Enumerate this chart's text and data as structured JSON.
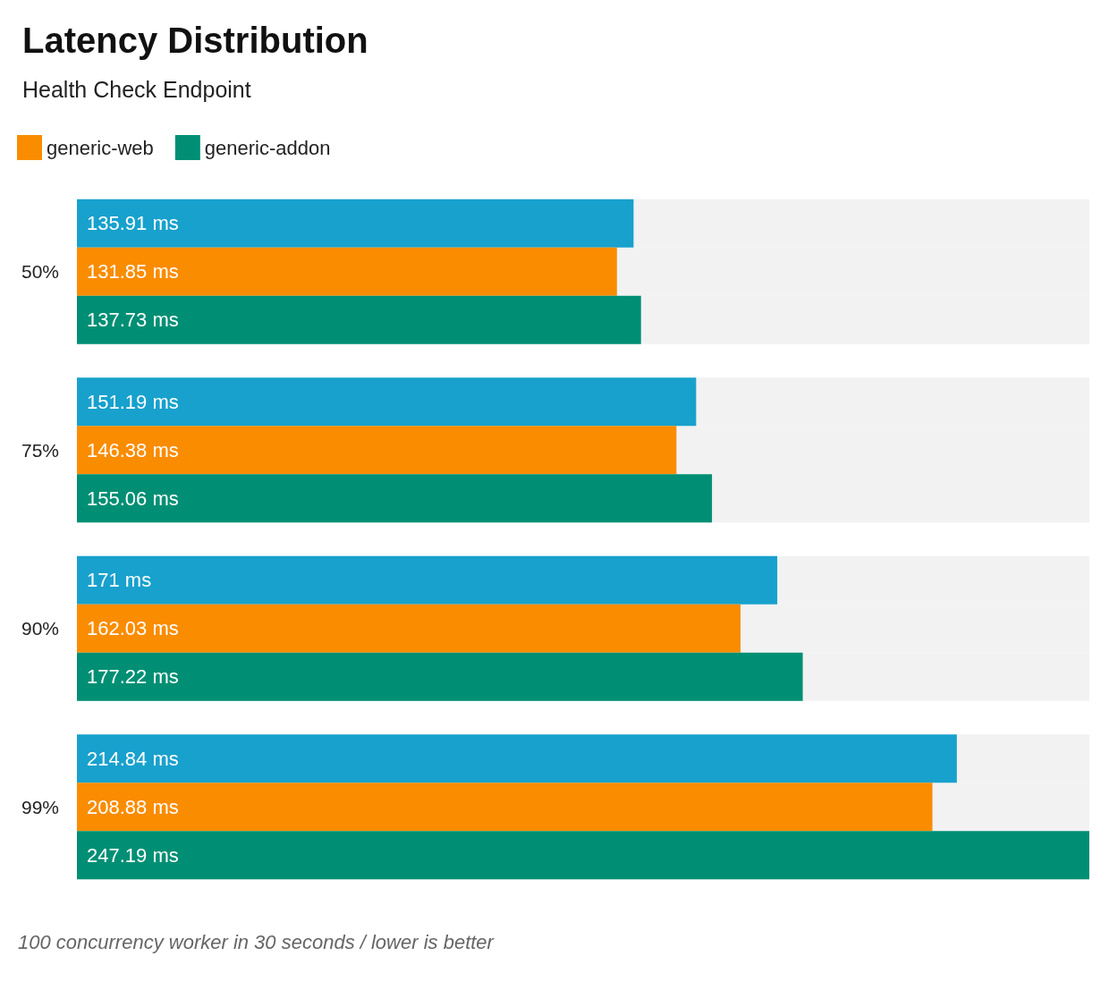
{
  "chart_data": {
    "type": "bar",
    "orientation": "horizontal",
    "title": "Latency Distribution",
    "subtitle": "Health Check Endpoint",
    "categories": [
      "50%",
      "75%",
      "90%",
      "99%"
    ],
    "series": [
      {
        "color": "#18a1cd",
        "values": [
          135.91,
          151.19,
          171,
          214.84
        ],
        "value_labels": [
          "135.91 ms",
          "151.19 ms",
          "171 ms",
          "214.84 ms"
        ]
      },
      {
        "name": "generic-web",
        "color": "#fa8c00",
        "values": [
          131.85,
          146.38,
          162.03,
          208.88
        ],
        "value_labels": [
          "131.85 ms",
          "146.38 ms",
          "162.03 ms",
          "208.88 ms"
        ]
      },
      {
        "name": "generic-addon",
        "color": "#008f74",
        "values": [
          137.73,
          155.06,
          177.22,
          247.19
        ],
        "value_labels": [
          "137.73 ms",
          "155.06 ms",
          "177.22 ms",
          "247.19 ms"
        ]
      }
    ],
    "legend": "top left",
    "grid": false,
    "tick_labels": "y",
    "annotations": [
      "100 concurrency worker in 30 seconds / lower is better"
    ]
  }
}
